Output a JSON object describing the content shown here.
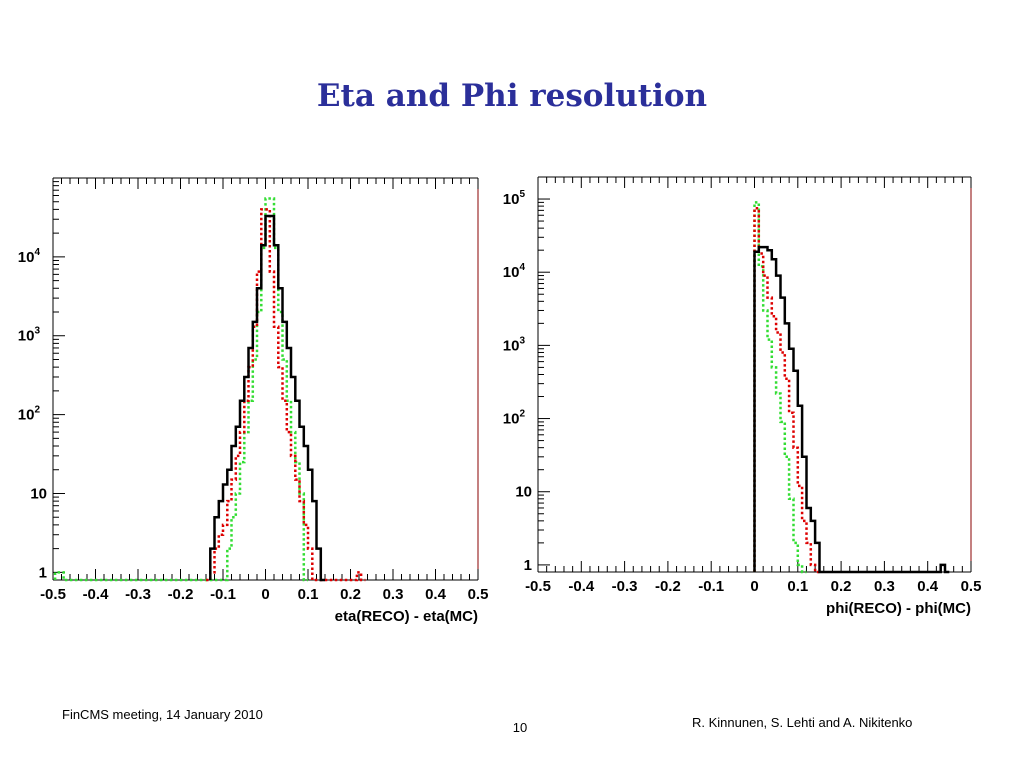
{
  "slide": {
    "title": "Eta and Phi resolution",
    "footer_left": "FinCMS meeting, 14 January 2010",
    "page_number": "10",
    "authors": "R. Kinnunen, S. Lehti and A. Nikitenko"
  },
  "colors": {
    "series1": "#000000",
    "series2": "#dd0000",
    "series3": "#33dd33",
    "frame_right": "#880000"
  },
  "chart_data": [
    {
      "type": "histogram",
      "title": "",
      "xlabel": "eta(RECO) - eta(MC)",
      "ylabel": "",
      "xlim": [
        -0.5,
        0.5
      ],
      "ylim": [
        0.8,
        100000
      ],
      "yscale": "log",
      "grid": false,
      "legend": "none",
      "xticks": [
        "-0.5",
        "-0.4",
        "-0.3",
        "-0.2",
        "-0.1",
        "0",
        "0.1",
        "0.2",
        "0.3",
        "0.4",
        "0.5"
      ],
      "yticks": [
        {
          "base": "1",
          "exp": ""
        },
        {
          "base": "10",
          "exp": ""
        },
        {
          "base": "10",
          "exp": "2"
        },
        {
          "base": "10",
          "exp": "3"
        },
        {
          "base": "10",
          "exp": "4"
        }
      ],
      "series": [
        {
          "style": "solid",
          "x": [
            -0.13,
            -0.12,
            -0.11,
            -0.1,
            -0.09,
            -0.08,
            -0.07,
            -0.06,
            -0.05,
            -0.04,
            -0.03,
            -0.02,
            -0.01,
            0.0,
            0.01,
            0.02,
            0.03,
            0.04,
            0.05,
            0.06,
            0.07,
            0.08,
            0.09,
            0.1,
            0.11,
            0.12,
            0.13
          ],
          "y": [
            2,
            5,
            8,
            13,
            20,
            40,
            70,
            150,
            300,
            700,
            1500,
            4000,
            14000,
            33000,
            33000,
            14000,
            4000,
            1500,
            700,
            300,
            150,
            70,
            40,
            20,
            8,
            2,
            0
          ]
        },
        {
          "style": "dotted",
          "x": [
            -0.14,
            -0.13,
            -0.12,
            -0.11,
            -0.1,
            -0.09,
            -0.08,
            -0.07,
            -0.06,
            -0.05,
            -0.04,
            -0.03,
            -0.02,
            -0.01,
            0.0,
            0.01,
            0.02,
            0.03,
            0.04,
            0.05,
            0.06,
            0.07,
            0.08,
            0.09,
            0.1,
            0.11,
            0.215,
            0.225
          ],
          "y": [
            0,
            1,
            2,
            3,
            4,
            8,
            15,
            30,
            60,
            150,
            400,
            1300,
            6500,
            40000,
            40000,
            6500,
            1300,
            400,
            150,
            60,
            30,
            15,
            8,
            4,
            2,
            0,
            1,
            0
          ]
        },
        {
          "style": "dotted",
          "x": [
            -0.495,
            -0.485,
            -0.475,
            -0.1,
            -0.09,
            -0.08,
            -0.07,
            -0.06,
            -0.05,
            -0.04,
            -0.03,
            -0.02,
            -0.01,
            0.0,
            0.01,
            0.02,
            0.03,
            0.04,
            0.05,
            0.06,
            0.07,
            0.08,
            0.09
          ],
          "y": [
            1,
            1,
            0,
            0,
            2,
            5,
            10,
            25,
            60,
            150,
            500,
            2000,
            13000,
            55000,
            55000,
            13000,
            2000,
            500,
            150,
            60,
            25,
            10,
            0
          ]
        }
      ]
    },
    {
      "type": "histogram",
      "title": "",
      "xlabel": "phi(RECO) - phi(MC)",
      "ylabel": "",
      "xlim": [
        -0.5,
        0.5
      ],
      "ylim": [
        0.8,
        200000
      ],
      "yscale": "log",
      "grid": false,
      "legend": "none",
      "xticks": [
        "-0.5",
        "-0.4",
        "-0.3",
        "-0.2",
        "-0.1",
        "0",
        "0.1",
        "0.2",
        "0.3",
        "0.4",
        "0.5"
      ],
      "yticks": [
        {
          "base": "1",
          "exp": ""
        },
        {
          "base": "10",
          "exp": ""
        },
        {
          "base": "10",
          "exp": "2"
        },
        {
          "base": "10",
          "exp": "3"
        },
        {
          "base": "10",
          "exp": "4"
        },
        {
          "base": "10",
          "exp": "5"
        }
      ],
      "series": [
        {
          "style": "solid",
          "x": [
            0.0,
            0.01,
            0.02,
            0.03,
            0.04,
            0.05,
            0.06,
            0.07,
            0.08,
            0.09,
            0.1,
            0.11,
            0.12,
            0.13,
            0.14,
            0.15,
            0.43,
            0.44
          ],
          "y": [
            19000,
            22000,
            22000,
            20000,
            15000,
            9000,
            4500,
            2000,
            900,
            450,
            150,
            30,
            6,
            4,
            2,
            0,
            1,
            0
          ]
        },
        {
          "style": "dotted",
          "x": [
            0.0,
            0.01,
            0.02,
            0.03,
            0.04,
            0.05,
            0.06,
            0.07,
            0.08,
            0.09,
            0.1,
            0.11,
            0.12,
            0.13,
            0.14
          ],
          "y": [
            75000,
            18000,
            9000,
            4500,
            2500,
            1500,
            800,
            350,
            120,
            40,
            12,
            4,
            2,
            1,
            0
          ]
        },
        {
          "style": "dotted",
          "x": [
            0.0,
            0.01,
            0.02,
            0.03,
            0.04,
            0.05,
            0.06,
            0.07,
            0.08,
            0.09,
            0.1,
            0.11
          ],
          "y": [
            90000,
            12000,
            3000,
            1200,
            500,
            220,
            90,
            30,
            8,
            2,
            1,
            0
          ]
        }
      ]
    }
  ]
}
